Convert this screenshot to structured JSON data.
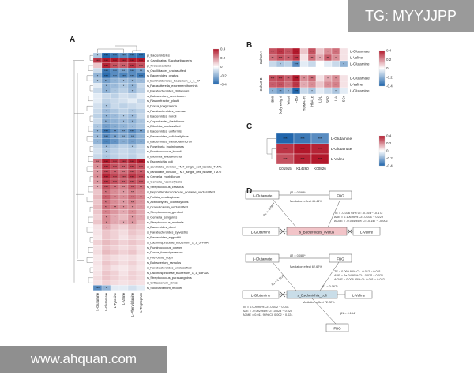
{
  "watermarks": {
    "top": "TG: MYYJJPP",
    "bottom": "www.ahquan.com"
  },
  "panels": {
    "a": "A",
    "b": "B",
    "c": "C",
    "d": "D"
  },
  "panel_a": {
    "colorbar": [
      "0.4",
      "0.2",
      "0",
      "-0.2",
      "-0.4"
    ],
    "columns": [
      "L-Glutamine",
      "L-Glutamate",
      "L-Tyrosine",
      "L-Valine",
      "L-Phenylalanine",
      "L-Tryptophan"
    ],
    "rows": [
      "p_Bacteroidetes",
      "p_Candidatus_Saccharibacteria",
      "p_Proteobacteria",
      "s_Oscillibacter_unclassified",
      "s_Bacteroides_ovatus",
      "s_Burkholderiales_bacterium_1_1_47",
      "s_Parasutterella_excrementihominis",
      "s_Parabacteroides_distasonis",
      "s_Eubacterium_ventriosum",
      "s_Flavonifractor_plautii",
      "s_Dorea_longicatena",
      "s_Parabacteroides_merdae",
      "s_Bacteroides_nordii",
      "s_Coprobacter_fastidiosus",
      "s_Bilophila_unclassified",
      "s_Bacteroides_uniformis",
      "s_Bacteroides_cellulosilyticus",
      "s_Bacteroides_thetaiotaomicron",
      "s_Roseburia_inulinivorans",
      "s_Ruminococcus_bromii",
      "s_Bilophila_wadsworthia",
      "s_Escherichia_coli",
      "s_candidate_division_TM7_single_cell_isolate_TM7a",
      "s_candidate_division_TM7_single_cell_isolate_TM7c",
      "s_Gemella_morbillorum",
      "s_Gemella_haemolysans",
      "s_Streptococcus_cristatus",
      "s_Peptostreptococcaceae_noname_unclassified",
      "s_Rothia_mucilaginosa",
      "s_Actinomyces_odontolyticus",
      "s_Granulicatella_unclassified",
      "s_Streptococcus_gordonii",
      "s_Gemella_sanguinis",
      "s_Streptococcus_australis",
      "s_Bacteroides_dorei",
      "s_Parabacteroides_sylvestris",
      "s_Bacteroides_eggerthii",
      "s_Lachnospiraceae_bacterium_1_1_57FAA",
      "s_Ruminococcus_obeum",
      "s_Dorea_formicigenerans",
      "s_Prevotella_copri",
      "s_Eubacterium_ramulus",
      "s_Parabacteroides_unclassified",
      "s_Lachnospiraceae_bacterium_1_1_63FAA",
      "s_Streptococcus_parasanguinis",
      "s_Oribacterium_sinus",
      "s_Solobacterium_moorei"
    ],
    "values": [
      [
        -0.15,
        -0.4,
        -0.35,
        -0.3,
        -0.35,
        -0.38
      ],
      [
        0.35,
        0.42,
        0.4,
        0.38,
        0.4,
        0.42
      ],
      [
        0.1,
        0.38,
        0.3,
        0.28,
        0.35,
        0.3
      ],
      [
        -0.1,
        -0.35,
        -0.3,
        -0.25,
        -0.3,
        -0.25
      ],
      [
        -0.2,
        -0.38,
        -0.3,
        -0.32,
        -0.3,
        -0.35
      ],
      [
        -0.15,
        -0.25,
        -0.2,
        -0.18,
        -0.2,
        -0.18
      ],
      [
        -0.05,
        -0.2,
        -0.18,
        -0.15,
        -0.2,
        -0.1
      ],
      [
        -0.1,
        -0.2,
        -0.15,
        -0.12,
        -0.18,
        -0.12
      ],
      [
        -0.05,
        -0.1,
        -0.12,
        -0.08,
        -0.1,
        -0.05
      ],
      [
        -0.05,
        -0.12,
        -0.1,
        -0.08,
        -0.05,
        -0.1
      ],
      [
        -0.08,
        -0.15,
        -0.1,
        -0.12,
        -0.1,
        -0.08
      ],
      [
        -0.1,
        -0.18,
        -0.15,
        -0.12,
        -0.15,
        -0.12
      ],
      [
        -0.12,
        -0.2,
        -0.18,
        -0.15,
        -0.18,
        -0.1
      ],
      [
        -0.1,
        -0.22,
        -0.2,
        -0.18,
        -0.2,
        -0.15
      ],
      [
        -0.15,
        -0.25,
        -0.22,
        -0.2,
        -0.18,
        -0.15
      ],
      [
        -0.2,
        -0.35,
        -0.28,
        -0.25,
        -0.3,
        -0.25
      ],
      [
        -0.18,
        -0.3,
        -0.25,
        -0.22,
        -0.25,
        -0.2
      ],
      [
        -0.2,
        -0.32,
        -0.28,
        -0.22,
        -0.25,
        -0.22
      ],
      [
        -0.1,
        -0.18,
        -0.15,
        -0.12,
        -0.15,
        -0.1
      ],
      [
        -0.08,
        -0.15,
        -0.12,
        -0.1,
        -0.12,
        -0.1
      ],
      [
        -0.1,
        -0.15,
        -0.12,
        -0.1,
        -0.12,
        -0.08
      ],
      [
        0.25,
        0.4,
        0.35,
        0.35,
        0.38,
        0.4
      ],
      [
        0.2,
        0.35,
        0.3,
        0.28,
        0.32,
        0.3
      ],
      [
        0.18,
        0.32,
        0.28,
        0.25,
        0.3,
        0.28
      ],
      [
        0.2,
        0.38,
        0.32,
        0.3,
        0.35,
        0.32
      ],
      [
        0.18,
        0.35,
        0.3,
        0.28,
        0.3,
        0.3
      ],
      [
        0.15,
        0.3,
        0.25,
        0.22,
        0.28,
        0.25
      ],
      [
        0.1,
        0.25,
        0.2,
        0.18,
        0.22,
        0.2
      ],
      [
        0.12,
        0.28,
        0.22,
        0.2,
        0.25,
        0.22
      ],
      [
        0.1,
        0.25,
        0.2,
        0.18,
        0.22,
        0.18
      ],
      [
        0.12,
        0.25,
        0.22,
        0.2,
        0.2,
        0.18
      ],
      [
        0.1,
        0.22,
        0.18,
        0.15,
        0.2,
        0.15
      ],
      [
        0.08,
        0.2,
        0.15,
        0.12,
        0.18,
        0.15
      ],
      [
        0.1,
        0.2,
        0.15,
        0.15,
        0.18,
        0.12
      ],
      [
        0.05,
        0.15,
        0.1,
        0.08,
        0.12,
        0.1
      ],
      [
        0.05,
        0.1,
        0.08,
        0.06,
        0.1,
        0.08
      ],
      [
        0.04,
        0.1,
        0.08,
        0.05,
        0.08,
        0.06
      ],
      [
        0.08,
        0.12,
        0.1,
        0.08,
        0.1,
        0.08
      ],
      [
        0.05,
        0.1,
        0.08,
        0.06,
        0.08,
        0.05
      ],
      [
        0.06,
        0.12,
        0.1,
        0.08,
        0.1,
        0.06
      ],
      [
        0.04,
        0.08,
        0.06,
        0.05,
        0.06,
        0.04
      ],
      [
        0.05,
        0.1,
        0.08,
        0.06,
        0.08,
        0.05
      ],
      [
        0.04,
        0.08,
        0.05,
        0.04,
        0.06,
        0.04
      ],
      [
        0.05,
        0.1,
        0.08,
        0.05,
        0.08,
        0.06
      ],
      [
        0.06,
        0.1,
        0.08,
        0.06,
        0.08,
        0.06
      ],
      [
        0.05,
        0.08,
        0.06,
        0.05,
        0.06,
        0.05
      ],
      [
        -0.3,
        -0.2,
        -0.05,
        -0.05,
        -0.08,
        -0.05
      ]
    ]
  },
  "panel_b": {
    "colorbar": [
      "0.4",
      "0.2",
      "0",
      "-0.2",
      "-0.4"
    ],
    "cohorts": [
      "Cohort A",
      "Cohort B"
    ],
    "rows_a": [
      "L-Glutamate",
      "L-Valine",
      "L-Glutamine"
    ],
    "rows_b": [
      "L-Glutamate",
      "L-Valine",
      "L-Glutamine"
    ],
    "columns": [
      "BMI",
      "Body weight",
      "Waist",
      "FBG",
      "HOMA-IR",
      "HbA1c",
      "LDL",
      "SBP",
      "UA",
      "SCr"
    ],
    "values_a": [
      [
        0.3,
        0.35,
        0.3,
        0.4,
        0.1,
        0.3,
        0.1,
        0.2,
        0.25,
        0.05
      ],
      [
        0.25,
        0.3,
        0.28,
        0.35,
        0.05,
        0.25,
        0.15,
        0.28,
        0.2,
        0.05
      ],
      [
        -0.1,
        -0.15,
        -0.12,
        -0.3,
        -0.05,
        -0.1,
        0.0,
        -0.05,
        -0.1,
        -0.2
      ]
    ],
    "values_b": [
      [
        0.3,
        0.32,
        0.28,
        0.42,
        0.2,
        0.25,
        0.05,
        0.15,
        0.2,
        0.05
      ],
      [
        0.28,
        0.3,
        0.25,
        0.35,
        0.15,
        0.2,
        0.1,
        0.2,
        0.22,
        0.05
      ],
      [
        -0.2,
        -0.25,
        -0.2,
        -0.4,
        -0.1,
        -0.15,
        -0.05,
        -0.1,
        -0.15,
        -0.05
      ]
    ]
  },
  "panel_c": {
    "colorbar": [
      "0.4",
      "0.2",
      "0",
      "-0.2",
      "-0.4"
    ],
    "rows": [
      "L-Glutamine",
      "L-Glutamate",
      "L-Valine"
    ],
    "columns": [
      "K01915",
      "K14260",
      "K00826"
    ],
    "values": [
      [
        -0.4,
        -0.35,
        -0.3
      ],
      [
        0.35,
        0.4,
        0.38
      ],
      [
        0.3,
        0.38,
        0.4
      ]
    ]
  },
  "panel_d": {
    "top": {
      "glutamate": "L-Glutamate",
      "fbg": "FBG",
      "beta_top": "β2 = 0.093*",
      "beta_left": "β1 = -0.087*",
      "mediation": "Mediation effect 45.44%",
      "glutamine": "L-Glutamine",
      "species": "s_Bacteroides_ovatus",
      "valine": "L-Valine",
      "stats": [
        "TE = -0.036  95% CI: -0.104 ~ -0.172",
        "ADE = 0.106  95% CI: -0.031 ~ 0.229",
        "ACME = -0.084  95% CI: -0.147 ~ -0.006"
      ]
    },
    "bottom": {
      "glutamate": "L-Glutamate",
      "fbg_top": "FBG",
      "beta_top": "β2 = 0.080*",
      "mediation_upper": "Mediation effect 62.62%",
      "glutamine": "L-Glutamine",
      "species": "s_Escherichia_coli",
      "valine": "L-Valine",
      "beta_left": "β1 = 0.113*",
      "beta_right": "β1 = 0.067*",
      "beta_lower": "β1 = 0.164*",
      "mediation_lower": "Mediation effect 72.22%",
      "fbg_bottom": "FBG",
      "stats_right": [
        "TE = 0.069  95% CI: -0.012 ~ 0.031",
        "ADE = 2e-04  95% CI: -0.022 ~ 0.021",
        "ACME = 0.006  95% CI: 0.001 ~ 0.022"
      ],
      "stats_left": [
        "TE = 0.009  95% CI: -0.012 ~ 0.031",
        "ADE = -0.002  95% CI: -0.023 ~ 0.020",
        "ACME = 0.011  95% CI: 0.002 ~ 0.024"
      ]
    }
  }
}
